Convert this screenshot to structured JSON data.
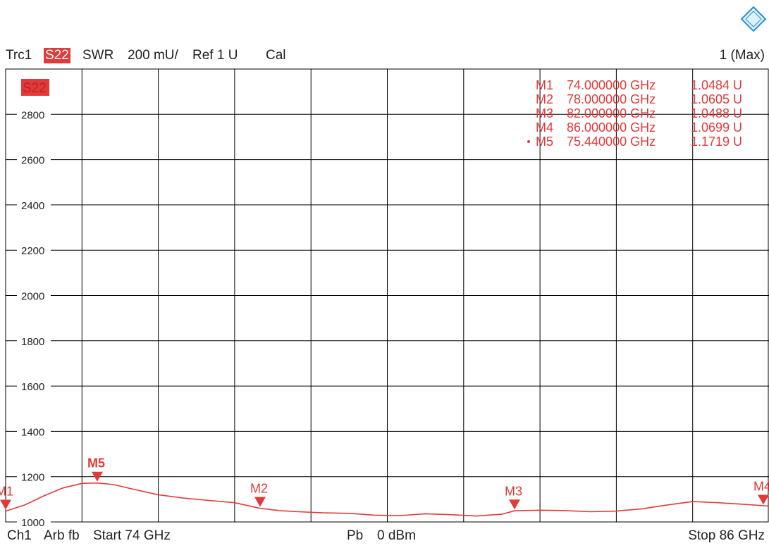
{
  "header": {
    "trace": "Trc1",
    "param": "S22",
    "format": "SWR",
    "scale": "200 mU/",
    "ref": "Ref 1 U",
    "cal": "Cal",
    "right": "1 (Max)"
  },
  "trace_badge": "S22",
  "footer": {
    "channel": "Ch1",
    "sweep": "Arb fb",
    "start": "Start  74 GHz",
    "power_label": "Pb",
    "power": "0 dBm",
    "stop": "Stop  86 GHz"
  },
  "markers_table": [
    {
      "name": "M1",
      "freq": "74.000000 GHz",
      "value": "1.0484  U",
      "active": false
    },
    {
      "name": "M2",
      "freq": "78.000000 GHz",
      "value": "1.0605  U",
      "active": false
    },
    {
      "name": "M3",
      "freq": "82.000000 GHz",
      "value": "1.0488  U",
      "active": false
    },
    {
      "name": "M4",
      "freq": "86.000000 GHz",
      "value": "1.0699  U",
      "active": false
    },
    {
      "name": "M5",
      "freq": "75.440000 GHz",
      "value": "1.1719  U",
      "active": true
    }
  ],
  "colors": {
    "trace": "#e03a3a",
    "grid": "#000000",
    "background": "#ffffff"
  },
  "chart_data": {
    "type": "line",
    "xlim": [
      74,
      86
    ],
    "ylim": [
      1000,
      3000
    ],
    "yticks": [
      1000,
      1200,
      1400,
      1600,
      1800,
      2000,
      2200,
      2400,
      2600,
      2800
    ],
    "ytick_labels": [
      "1000",
      "1200",
      "1400",
      "1600",
      "1800",
      "2000",
      "2200",
      "2400",
      "2600",
      "2800"
    ],
    "series": [
      {
        "color": "#e03a3a",
        "x": [
          74.0,
          74.3,
          74.6,
          74.9,
          75.2,
          75.44,
          75.7,
          76.0,
          76.4,
          76.8,
          77.2,
          77.6,
          78.0,
          78.3,
          78.6,
          79.0,
          79.4,
          79.8,
          80.2,
          80.6,
          81.0,
          81.4,
          81.8,
          82.0,
          82.4,
          82.8,
          83.2,
          83.6,
          84.0,
          84.4,
          84.8,
          85.2,
          85.6,
          86.0
        ],
        "y": [
          1048,
          1075,
          1115,
          1150,
          1170,
          1172,
          1165,
          1145,
          1120,
          1105,
          1095,
          1085,
          1060,
          1050,
          1045,
          1040,
          1038,
          1030,
          1028,
          1036,
          1032,
          1026,
          1034,
          1049,
          1052,
          1050,
          1045,
          1048,
          1058,
          1075,
          1090,
          1085,
          1078,
          1070
        ]
      }
    ],
    "markers": [
      {
        "name": "M1",
        "x": 74.0,
        "y": 1048.4
      },
      {
        "name": "M2",
        "x": 78.0,
        "y": 1060.5
      },
      {
        "name": "M3",
        "x": 82.0,
        "y": 1048.8
      },
      {
        "name": "M4",
        "x": 86.0,
        "y": 1069.9
      },
      {
        "name": "M5",
        "x": 75.44,
        "y": 1171.9
      }
    ]
  }
}
